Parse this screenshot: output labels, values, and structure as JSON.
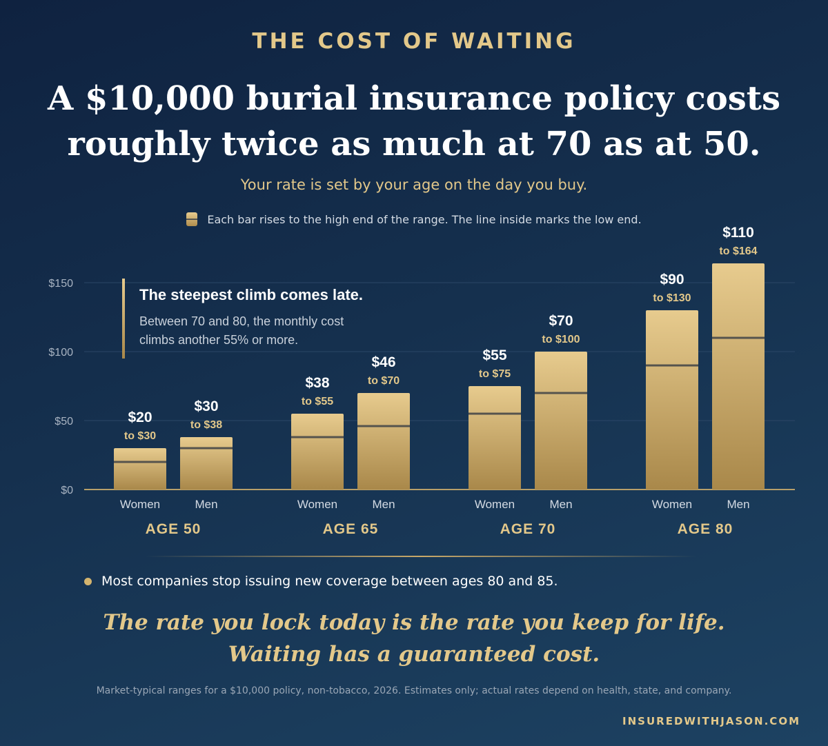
{
  "header": {
    "eyebrow": "THE COST OF WAITING",
    "headline_line1": "A $10,000 burial insurance policy costs",
    "headline_line2": "roughly twice as much at 70 as at 50.",
    "subhead": "Your rate is set by your age on the day you buy."
  },
  "legend": {
    "text": "Each bar rises to the high end of the range. The line inside marks the low end."
  },
  "callout": {
    "title": "The steepest climb comes late.",
    "body_line1": "Between 70 and 80, the monthly cost",
    "body_line2": "climbs another 55% or more."
  },
  "chart_data": {
    "type": "bar",
    "title": "",
    "xlabel": "",
    "ylabel": "",
    "ylim": [
      0,
      150
    ],
    "yticks": [
      0,
      50,
      100,
      150
    ],
    "ytick_labels": [
      "$0",
      "$50",
      "$100",
      "$150"
    ],
    "grid": true,
    "groups": [
      {
        "label": "AGE 50",
        "bars": [
          {
            "category": "Women",
            "low": 20,
            "high": 30,
            "low_label": "$20",
            "high_label": "to $30"
          },
          {
            "category": "Men",
            "low": 30,
            "high": 38,
            "low_label": "$30",
            "high_label": "to $38"
          }
        ]
      },
      {
        "label": "AGE 65",
        "bars": [
          {
            "category": "Women",
            "low": 38,
            "high": 55,
            "low_label": "$38",
            "high_label": "to $55"
          },
          {
            "category": "Men",
            "low": 46,
            "high": 70,
            "low_label": "$46",
            "high_label": "to $70"
          }
        ]
      },
      {
        "label": "AGE 70",
        "bars": [
          {
            "category": "Women",
            "low": 55,
            "high": 75,
            "low_label": "$55",
            "high_label": "to $75"
          },
          {
            "category": "Men",
            "low": 70,
            "high": 100,
            "low_label": "$70",
            "high_label": "to $100"
          }
        ]
      },
      {
        "label": "AGE 80",
        "bars": [
          {
            "category": "Women",
            "low": 90,
            "high": 130,
            "low_label": "$90",
            "high_label": "to $130"
          },
          {
            "category": "Men",
            "low": 110,
            "high": 164,
            "low_label": "$110",
            "high_label": "to $164"
          }
        ]
      }
    ],
    "colors": {
      "bar_top": "#e7cb8e",
      "bar_bottom": "#a9884a",
      "low_line": "#55534d",
      "grid": "#2b4767",
      "axis": "#b8a06a",
      "tick_text": "#a9b4c2",
      "value_text": "#ffffff",
      "range_text": "#e3c88a",
      "group_text": "#e3c88a",
      "category_text": "#d4dbe4"
    }
  },
  "note": {
    "text": "Most companies stop issuing new coverage between ages 80 and 85."
  },
  "closing": {
    "line1": "The rate you lock today is the rate you keep for life.",
    "line2": "Waiting has a guaranteed cost."
  },
  "footnote": "Market-typical ranges for a $10,000 policy, non-tobacco, 2026. Estimates only; actual rates depend on health, state, and company.",
  "brand": "INSUREDWITHJASON.COM"
}
